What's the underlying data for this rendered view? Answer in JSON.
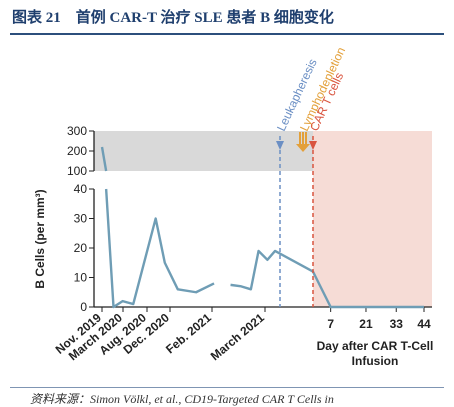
{
  "title": "图表 21　首例 CAR-T 治疗 SLE 患者 B 细胞变化",
  "source_note": "资料来源：Simon Völkl, et al., CD19-Targeted CAR T Cells in",
  "chart_data": {
    "type": "line",
    "title": "",
    "ylabel": "B Cells (per mm³)",
    "xlabel_right": "Day after CAR T-Cell Infusion",
    "y_ticks_upper": [
      100,
      200,
      300
    ],
    "y_ticks_lower": [
      0,
      10,
      20,
      30,
      40
    ],
    "x_date_ticks": [
      "Nov. 2019",
      "March 2020",
      "Aug. 2020",
      "Dec. 2020",
      "Feb. 2021",
      "March 2021"
    ],
    "x_day_ticks": [
      "7",
      "21",
      "33",
      "44"
    ],
    "events": [
      "Leukapheresis",
      "Lymphodepletion",
      "CAR T cells"
    ],
    "series": [
      {
        "values": [
          {
            "x": "2019-11-01",
            "y": 220
          },
          {
            "x": "2019-11-15",
            "y": 40
          },
          {
            "x": "2019-12-10",
            "y": 0
          },
          {
            "x": "2020-01-10",
            "y": 2
          },
          {
            "x": "2020-02-15",
            "y": 1
          },
          {
            "x": "2020-05-01",
            "y": 30
          },
          {
            "x": "2020-06-01",
            "y": 15
          },
          {
            "x": "2020-07-15",
            "y": 6
          },
          {
            "x": "2020-09-15",
            "y": 5
          },
          {
            "x": "2020-11-15",
            "y": 8
          },
          {
            "x": "2021-01-10",
            "y": 7.5
          },
          {
            "x": "2021-02-15",
            "y": 7
          },
          {
            "x": "2021-03-20",
            "y": 6
          },
          {
            "x": "2021-04-15",
            "y": 19
          },
          {
            "x": "2021-05-15",
            "y": 16
          },
          {
            "x": "2021-06-10",
            "y": 19
          },
          {
            "x": "day 0",
            "y": 12
          },
          {
            "x": "day 7",
            "y": 0
          },
          {
            "x": "day 44",
            "y": 0
          }
        ]
      }
    ],
    "colors": {
      "line": "#6f9db5",
      "upper_band": "#d9d9d9",
      "post_infusion": "#f6dcd6",
      "leukapheresis": "#6b8fc4",
      "lymphodepletion": "#e3a03a",
      "car_t": "#d9543f"
    }
  }
}
